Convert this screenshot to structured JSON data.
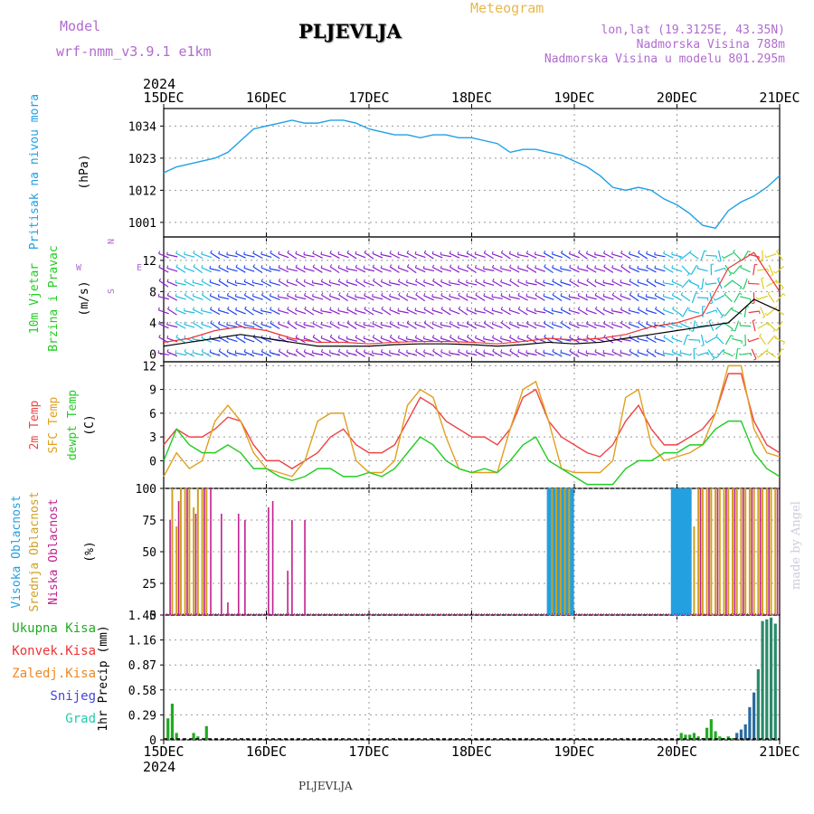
{
  "header": {
    "model_label": "Model",
    "model_name": "wrf-nmm_v3.9.1  e1km",
    "station": "PLJEVLJA",
    "meteogram": "Meteogram",
    "lonlat": "lon,lat (19.3125E, 43.35N)",
    "elevation": "Nadmorska Visina 788m",
    "model_elevation": "Nadmorska Visina u modelu 801.295m",
    "footer_station": "PLJEVLJA",
    "credit": "made by Angel"
  },
  "colors": {
    "pressure": "#1ea0e6",
    "wind_speed": "#000000",
    "wind_gust": "#ee3333",
    "temp2m": "#ee4444",
    "sfc_temp": "#e0a020",
    "dewpt": "#22cc22",
    "cloud_high": "#22a0e0",
    "cloud_mid": "#d0a020",
    "cloud_low": "#c02090",
    "precip_total": "#22aa22",
    "precip_conv": "#ee3333",
    "precip_frozen": "#ee8822",
    "snow": "#4444dd",
    "hail": "#22ccaa",
    "barb_purple": "#8822cc",
    "barb_blue": "#2244ee",
    "barb_cyan": "#22bbdd",
    "barb_green": "#22cc66",
    "barb_yellow": "#ddcc22",
    "barb_red": "#ee3344"
  },
  "chart_data": [
    {
      "type": "line",
      "panel": "pressure",
      "ylabel_title": "Pritisak na nivou mora",
      "ylabel_unit": "(hPa)",
      "yticks": [
        1001,
        1012,
        1023,
        1034
      ],
      "ylim": [
        996,
        1040
      ],
      "xlim": [
        0,
        144
      ],
      "x_top_year": "2024",
      "x_tick_labels": [
        "15DEC",
        "16DEC",
        "17DEC",
        "18DEC",
        "19DEC",
        "20DEC",
        "21DEC"
      ],
      "x_tick_hours": [
        0,
        24,
        48,
        72,
        96,
        120,
        144
      ],
      "series": [
        {
          "x": [
            0,
            3,
            6,
            9,
            12,
            15,
            18,
            21,
            24,
            27,
            30,
            33,
            36,
            39,
            42,
            45,
            48,
            51,
            54,
            57,
            60,
            63,
            66,
            69,
            72,
            75,
            78,
            81,
            84,
            87,
            90,
            93,
            96,
            99,
            102,
            105,
            108,
            111,
            114,
            117,
            120,
            123,
            126,
            129,
            132,
            135,
            138,
            141,
            144
          ],
          "values": [
            1018,
            1020,
            1021,
            1022,
            1023,
            1025,
            1029,
            1033,
            1034,
            1035,
            1036,
            1035,
            1035,
            1036,
            1036,
            1035,
            1033,
            1032,
            1031,
            1031,
            1030,
            1031,
            1031,
            1030,
            1030,
            1029,
            1028,
            1025,
            1026,
            1026,
            1025,
            1024,
            1022,
            1020,
            1017,
            1013,
            1012,
            1013,
            1012,
            1009,
            1007,
            1004,
            1000,
            999,
            1005,
            1008,
            1010,
            1013,
            1017
          ]
        }
      ]
    },
    {
      "type": "line",
      "panel": "wind",
      "ylabel_title": "10m Vjetar",
      "ylabel_title2": "Brzina i Pravac",
      "ylabel_unit": "(m/s)",
      "legend_compass": "N",
      "legend_w": "W",
      "legend_e": "E",
      "legend_s": "S",
      "yticks": [
        0,
        4,
        8,
        12
      ],
      "ylim": [
        -1,
        15
      ],
      "xlim": [
        0,
        144
      ],
      "series": [
        {
          "name": "speed",
          "x": [
            0,
            6,
            12,
            18,
            24,
            30,
            36,
            42,
            48,
            54,
            60,
            66,
            72,
            78,
            84,
            90,
            96,
            102,
            108,
            114,
            120,
            126,
            132,
            138,
            144
          ],
          "values": [
            1,
            1.5,
            2,
            2.5,
            2,
            1.5,
            1,
            1,
            1,
            1.2,
            1.3,
            1.3,
            1.2,
            1,
            1.2,
            1.5,
            1.3,
            1.5,
            2,
            2.5,
            3,
            3.5,
            4,
            7,
            5.5
          ]
        },
        {
          "name": "gust",
          "x": [
            0,
            6,
            12,
            18,
            24,
            30,
            36,
            42,
            48,
            54,
            60,
            66,
            72,
            78,
            84,
            90,
            96,
            102,
            108,
            114,
            120,
            126,
            132,
            138,
            144
          ],
          "values": [
            1.5,
            2,
            3,
            3.5,
            3,
            2,
            1.5,
            1.5,
            1.3,
            1.5,
            1.6,
            1.6,
            1.5,
            1.3,
            1.6,
            2,
            1.8,
            2,
            2.5,
            3.5,
            4,
            5,
            11,
            13,
            8
          ]
        }
      ]
    },
    {
      "type": "line",
      "panel": "temperature",
      "ylabel_t2m": "2m Temp",
      "ylabel_sfc": "SFC Temp",
      "ylabel_dew": "dewpt Temp",
      "ylabel_unit": "(C)",
      "yticks": [
        0,
        3,
        6,
        9,
        12
      ],
      "ylim": [
        -3.5,
        12.5
      ],
      "xlim": [
        0,
        144
      ],
      "series": [
        {
          "name": "2m",
          "x": [
            0,
            3,
            6,
            9,
            12,
            15,
            18,
            21,
            24,
            27,
            30,
            33,
            36,
            39,
            42,
            45,
            48,
            51,
            54,
            57,
            60,
            63,
            66,
            69,
            72,
            75,
            78,
            81,
            84,
            87,
            90,
            93,
            96,
            99,
            102,
            105,
            108,
            111,
            114,
            117,
            120,
            123,
            126,
            129,
            132,
            135,
            138,
            141,
            144
          ],
          "values": [
            2,
            4,
            3,
            3,
            4,
            5.5,
            5,
            2,
            0,
            0,
            -1,
            0,
            1,
            3,
            4,
            2,
            1,
            1,
            2,
            5,
            8,
            7,
            5,
            4,
            3,
            3,
            2,
            4,
            8,
            9,
            5,
            3,
            2,
            1,
            0.5,
            2,
            5,
            7,
            4,
            2,
            2,
            3,
            4,
            6,
            11,
            11,
            5,
            2,
            1
          ]
        },
        {
          "name": "sfc",
          "x": [
            0,
            3,
            6,
            9,
            12,
            15,
            18,
            21,
            24,
            27,
            30,
            33,
            36,
            39,
            42,
            45,
            48,
            51,
            54,
            57,
            60,
            63,
            66,
            69,
            72,
            75,
            78,
            81,
            84,
            87,
            90,
            93,
            96,
            99,
            102,
            105,
            108,
            111,
            114,
            117,
            120,
            123,
            126,
            129,
            132,
            135,
            138,
            141,
            144
          ],
          "values": [
            -2,
            1,
            -1,
            0,
            5,
            7,
            5,
            1,
            -1,
            -1.5,
            -2,
            0,
            5,
            6,
            6,
            0,
            -1.5,
            -1.5,
            0,
            7,
            9,
            8,
            3,
            -1,
            -1.5,
            -1.5,
            -1.5,
            4,
            9,
            10,
            5,
            -1,
            -1.5,
            -1.5,
            -1.5,
            0,
            8,
            9,
            2,
            0,
            0.5,
            1,
            2,
            6,
            12,
            12,
            4,
            1,
            0.5
          ]
        },
        {
          "name": "dewpt",
          "x": [
            0,
            3,
            6,
            9,
            12,
            15,
            18,
            21,
            24,
            27,
            30,
            33,
            36,
            39,
            42,
            45,
            48,
            51,
            54,
            57,
            60,
            63,
            66,
            69,
            72,
            75,
            78,
            81,
            84,
            87,
            90,
            93,
            96,
            99,
            102,
            105,
            108,
            111,
            114,
            117,
            120,
            123,
            126,
            129,
            132,
            135,
            138,
            141,
            144
          ],
          "values": [
            0,
            4,
            2,
            1,
            1,
            2,
            1,
            -1,
            -1,
            -2,
            -2.5,
            -2,
            -1,
            -1,
            -2,
            -2,
            -1.5,
            -2,
            -1,
            1,
            3,
            2,
            0,
            -1,
            -1.5,
            -1,
            -1.5,
            0,
            2,
            3,
            0,
            -1,
            -2,
            -3,
            -3,
            -3,
            -1,
            0,
            0,
            1,
            1,
            2,
            2,
            4,
            5,
            5,
            1,
            -1,
            -2
          ]
        }
      ]
    },
    {
      "type": "bar",
      "panel": "clouds",
      "ylabel_high": "Visoka Oblacnost",
      "ylabel_mid": "Srednja Oblacnost",
      "ylabel_low": "Niska Oblacnost",
      "ylabel_unit": "(%)",
      "yticks": [
        0,
        25,
        50,
        75,
        100
      ],
      "ylim": [
        0,
        100
      ],
      "xlim": [
        0,
        144
      ],
      "series": [
        {
          "name": "high",
          "x": [
            90,
            90.5,
            91,
            91.5,
            92,
            92.5,
            93,
            93.5,
            94,
            94.5,
            95,
            95.5,
            119,
            119.5,
            120,
            120.5,
            121,
            121.5,
            122,
            122.5,
            123
          ],
          "values": [
            100,
            100,
            100,
            100,
            100,
            100,
            100,
            100,
            100,
            100,
            100,
            100,
            100,
            100,
            100,
            100,
            100,
            100,
            100,
            100,
            100
          ]
        },
        {
          "name": "mid",
          "x": [
            2,
            3,
            4,
            5,
            6,
            7,
            8,
            9,
            10,
            90.8,
            91.8,
            92.8,
            93.8,
            94.8,
            124,
            125,
            126,
            127,
            128,
            129,
            130,
            131,
            132,
            133,
            134,
            135,
            136,
            137,
            138,
            139,
            140,
            141,
            142,
            143
          ],
          "values": [
            100,
            70,
            100,
            100,
            100,
            85,
            100,
            100,
            100,
            100,
            100,
            100,
            100,
            100,
            70,
            100,
            100,
            100,
            100,
            100,
            100,
            100,
            100,
            100,
            100,
            100,
            100,
            100,
            100,
            100,
            100,
            100,
            100,
            100
          ]
        },
        {
          "name": "low",
          "x": [
            1.5,
            3.5,
            5.5,
            7.5,
            9.5,
            11,
            13.5,
            15,
            17.5,
            19,
            21,
            24.5,
            25.5,
            29,
            30,
            33,
            125.5,
            127.5,
            129.5,
            131.5,
            133.5,
            135.5,
            137.5,
            139.5,
            141.5,
            143.5
          ],
          "values": [
            75,
            90,
            100,
            80,
            100,
            100,
            80,
            10,
            80,
            75,
            0,
            85,
            90,
            35,
            75,
            75,
            100,
            100,
            100,
            100,
            100,
            100,
            100,
            100,
            100,
            100
          ]
        }
      ]
    },
    {
      "type": "bar",
      "panel": "precip",
      "legend_total": "Ukupna Kisa",
      "legend_conv": "Konvek.Kisa",
      "legend_frozen": "Zaledj.Kisa",
      "legend_snow": "Snijeg",
      "legend_hail": "Grad",
      "ylabel": "1hr Precip (mm)",
      "yticks": [
        0,
        0.29,
        0.58,
        0.87,
        1.16,
        1.45
      ],
      "ylim": [
        0,
        1.45
      ],
      "xlim": [
        0,
        144
      ],
      "x_bottom_year": "2024",
      "series": [
        {
          "name": "total",
          "x": [
            1,
            2,
            3,
            7,
            8,
            10,
            121,
            122,
            123,
            124,
            125,
            126,
            127,
            128,
            129,
            130,
            131,
            132,
            133,
            134,
            135,
            136,
            137,
            138,
            139,
            140,
            141,
            142,
            143
          ],
          "values": [
            0.25,
            0.42,
            0.08,
            0.08,
            0.04,
            0.16,
            0.08,
            0.06,
            0.06,
            0.08,
            0.04,
            0.02,
            0.14,
            0.24,
            0.1,
            0.04,
            0.02,
            0.04,
            0.02,
            0.08,
            0.12,
            0.18,
            0.38,
            0.55,
            0.82,
            1.38,
            1.4,
            1.42,
            1.35
          ]
        }
      ]
    }
  ]
}
